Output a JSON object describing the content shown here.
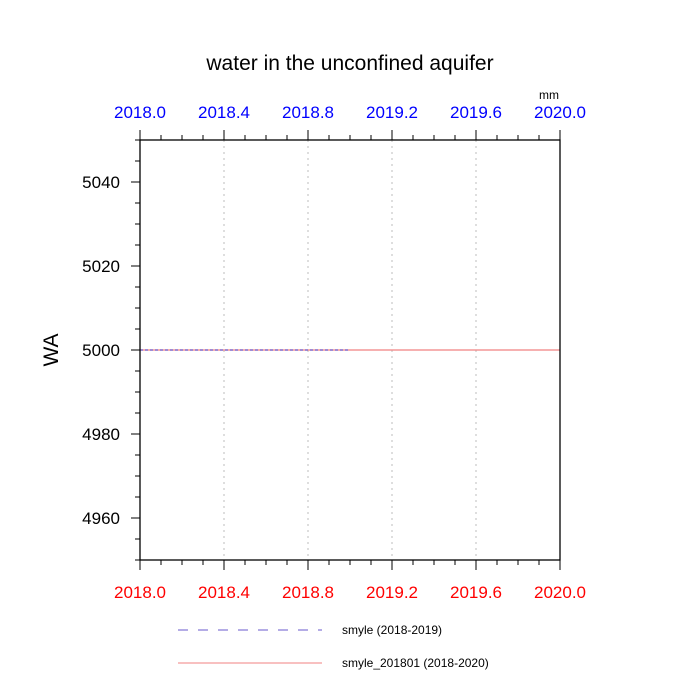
{
  "chart_data": {
    "type": "line",
    "title": "water in the unconfined aquifer",
    "units": "mm",
    "ylabel": "WA",
    "xlim": [
      2018.0,
      2020.0
    ],
    "ylim": [
      4950,
      5050
    ],
    "x_ticks": [
      2018.0,
      2018.4,
      2018.8,
      2019.2,
      2019.6,
      2020.0
    ],
    "x_tick_labels": [
      "2018.0",
      "2018.4",
      "2018.8",
      "2019.2",
      "2019.6",
      "2020.0"
    ],
    "y_ticks": [
      4960,
      4980,
      5000,
      5020,
      5040
    ],
    "y_tick_labels": [
      "4960",
      "4980",
      "5000",
      "5020",
      "5040"
    ],
    "grid": "vertical-dotted",
    "legend_position": "bottom",
    "colors": {
      "top_axis_labels": "#0000ff",
      "bottom_axis_labels": "#ff0000"
    },
    "series": [
      {
        "name": "smyle (2018-2019)",
        "color": "#6a5acd",
        "dash": "dashed",
        "x": [
          2018.0,
          2019.0
        ],
        "y": [
          5000,
          5000
        ]
      },
      {
        "name": "smyle_201801 (2018-2020)",
        "color": "#f08080",
        "dash": "solid",
        "x": [
          2018.0,
          2020.0
        ],
        "y": [
          5000,
          5000
        ]
      }
    ]
  }
}
